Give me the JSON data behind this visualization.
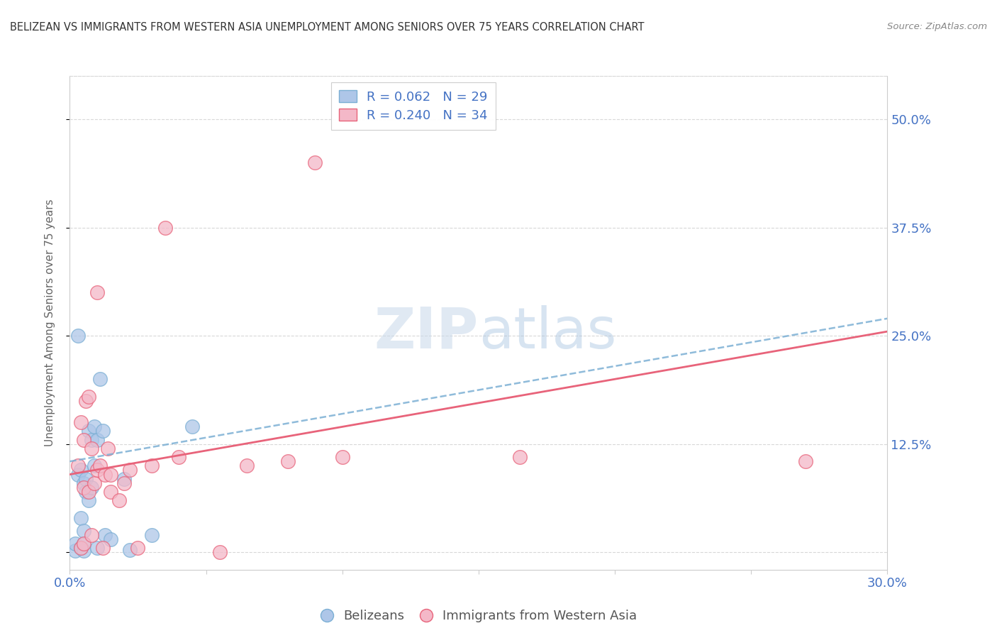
{
  "title": "BELIZEAN VS IMMIGRANTS FROM WESTERN ASIA UNEMPLOYMENT AMONG SENIORS OVER 75 YEARS CORRELATION CHART",
  "source": "Source: ZipAtlas.com",
  "ylabel": "Unemployment Among Seniors over 75 years",
  "xlim": [
    0.0,
    0.3
  ],
  "ylim": [
    -0.02,
    0.55
  ],
  "x_ticks": [
    0.0,
    0.05,
    0.1,
    0.15,
    0.2,
    0.25,
    0.3
  ],
  "x_tick_labels": [
    "0.0%",
    "",
    "",
    "",
    "",
    "",
    "30.0%"
  ],
  "y_ticks": [
    0.0,
    0.125,
    0.25,
    0.375,
    0.5
  ],
  "y_tick_labels": [
    "",
    "12.5%",
    "25.0%",
    "37.5%",
    "50.0%"
  ],
  "legend_blue_r": "R = 0.062",
  "legend_blue_n": "N = 29",
  "legend_pink_r": "R = 0.240",
  "legend_pink_n": "N = 34",
  "blue_color": "#aec6e8",
  "pink_color": "#f4b8c8",
  "trendline_blue_color": "#7bafd4",
  "trendline_pink_color": "#e8637a",
  "watermark_color": "#c8d8e8",
  "blue_scatter_x": [
    0.002,
    0.002,
    0.003,
    0.003,
    0.004,
    0.004,
    0.004,
    0.005,
    0.005,
    0.005,
    0.005,
    0.006,
    0.006,
    0.007,
    0.007,
    0.008,
    0.008,
    0.009,
    0.009,
    0.01,
    0.01,
    0.011,
    0.012,
    0.013,
    0.015,
    0.02,
    0.022,
    0.03,
    0.045
  ],
  "blue_scatter_y": [
    0.002,
    0.01,
    0.09,
    0.25,
    0.005,
    0.04,
    0.095,
    0.002,
    0.01,
    0.025,
    0.08,
    0.07,
    0.085,
    0.06,
    0.14,
    0.075,
    0.13,
    0.1,
    0.145,
    0.13,
    0.005,
    0.2,
    0.14,
    0.02,
    0.015,
    0.085,
    0.003,
    0.02,
    0.145
  ],
  "pink_scatter_x": [
    0.003,
    0.004,
    0.004,
    0.005,
    0.005,
    0.005,
    0.006,
    0.007,
    0.007,
    0.008,
    0.008,
    0.009,
    0.01,
    0.01,
    0.011,
    0.012,
    0.013,
    0.014,
    0.015,
    0.015,
    0.018,
    0.02,
    0.022,
    0.025,
    0.03,
    0.035,
    0.04,
    0.055,
    0.065,
    0.08,
    0.09,
    0.1,
    0.165,
    0.27
  ],
  "pink_scatter_y": [
    0.1,
    0.005,
    0.15,
    0.01,
    0.075,
    0.13,
    0.175,
    0.07,
    0.18,
    0.02,
    0.12,
    0.08,
    0.095,
    0.3,
    0.1,
    0.005,
    0.09,
    0.12,
    0.07,
    0.09,
    0.06,
    0.08,
    0.095,
    0.005,
    0.1,
    0.375,
    0.11,
    0.0,
    0.1,
    0.105,
    0.45,
    0.11,
    0.11,
    0.105
  ],
  "trendline_blue_y_start": 0.105,
  "trendline_blue_y_end": 0.27,
  "trendline_pink_y_start": 0.09,
  "trendline_pink_y_end": 0.255,
  "background_color": "#ffffff",
  "grid_color": "#d8d8d8",
  "legend_text_color": "#4472c4",
  "axis_color": "#cccccc"
}
